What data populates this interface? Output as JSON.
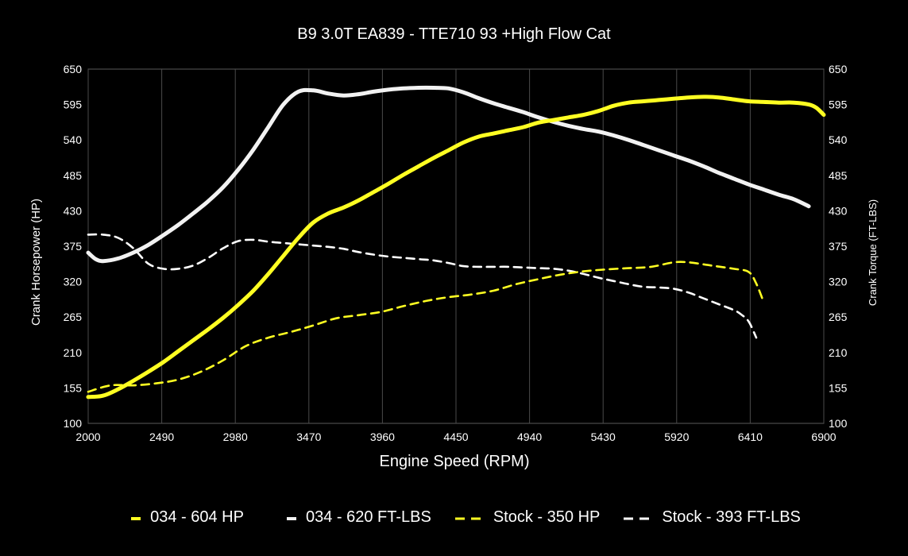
{
  "chart_data": {
    "type": "line",
    "title": "B9 3.0T EA839 - TTE710 93 +High Flow Cat",
    "xlabel": "Engine Speed (RPM)",
    "ylabel": "Crank Horsepower (HP)",
    "y2label": "Crank Torque (FT-LBS)",
    "xlim": [
      2000,
      6900
    ],
    "ylim": [
      100,
      650
    ],
    "y2lim": [
      100,
      650
    ],
    "x_ticks": [
      "2000",
      "2490",
      "2980",
      "3470",
      "3960",
      "4450",
      "4940",
      "5430",
      "5920",
      "6410",
      "6900"
    ],
    "y_ticks": [
      "100",
      "155",
      "210",
      "265",
      "320",
      "375",
      "430",
      "485",
      "540",
      "595",
      "650"
    ],
    "grid": "vertical",
    "legend_position": "bottom",
    "series": [
      {
        "name": "034 - 604 HP",
        "color": "#ffff22",
        "style": "solid",
        "axis": "left",
        "points": [
          [
            2000,
            141
          ],
          [
            2100,
            143
          ],
          [
            2200,
            153
          ],
          [
            2300,
            166
          ],
          [
            2400,
            180
          ],
          [
            2500,
            195
          ],
          [
            2600,
            212
          ],
          [
            2700,
            229
          ],
          [
            2800,
            246
          ],
          [
            2900,
            264
          ],
          [
            3000,
            284
          ],
          [
            3100,
            306
          ],
          [
            3200,
            332
          ],
          [
            3300,
            360
          ],
          [
            3400,
            388
          ],
          [
            3500,
            412
          ],
          [
            3600,
            426
          ],
          [
            3700,
            435
          ],
          [
            3800,
            446
          ],
          [
            3900,
            459
          ],
          [
            4000,
            472
          ],
          [
            4100,
            486
          ],
          [
            4200,
            499
          ],
          [
            4300,
            512
          ],
          [
            4400,
            524
          ],
          [
            4500,
            536
          ],
          [
            4600,
            545
          ],
          [
            4700,
            550
          ],
          [
            4800,
            555
          ],
          [
            4900,
            560
          ],
          [
            5000,
            567
          ],
          [
            5100,
            571
          ],
          [
            5200,
            575
          ],
          [
            5300,
            579
          ],
          [
            5400,
            585
          ],
          [
            5500,
            593
          ],
          [
            5600,
            598
          ],
          [
            5700,
            600
          ],
          [
            5800,
            602
          ],
          [
            5900,
            604
          ],
          [
            6000,
            606
          ],
          [
            6100,
            607
          ],
          [
            6200,
            606
          ],
          [
            6300,
            603
          ],
          [
            6400,
            600
          ],
          [
            6500,
            599
          ],
          [
            6600,
            598
          ],
          [
            6700,
            598
          ],
          [
            6800,
            595
          ],
          [
            6850,
            590
          ],
          [
            6900,
            579
          ]
        ]
      },
      {
        "name": "034 - 620 FT-LBS",
        "color": "#f2f2f2",
        "style": "solid",
        "axis": "right",
        "points": [
          [
            2000,
            365
          ],
          [
            2050,
            355
          ],
          [
            2100,
            352
          ],
          [
            2200,
            356
          ],
          [
            2300,
            365
          ],
          [
            2400,
            377
          ],
          [
            2500,
            392
          ],
          [
            2600,
            408
          ],
          [
            2700,
            426
          ],
          [
            2800,
            445
          ],
          [
            2900,
            467
          ],
          [
            3000,
            494
          ],
          [
            3100,
            525
          ],
          [
            3200,
            560
          ],
          [
            3300,
            595
          ],
          [
            3400,
            615
          ],
          [
            3500,
            617
          ],
          [
            3600,
            612
          ],
          [
            3700,
            609
          ],
          [
            3800,
            611
          ],
          [
            3900,
            615
          ],
          [
            4000,
            618
          ],
          [
            4100,
            620
          ],
          [
            4200,
            621
          ],
          [
            4300,
            621
          ],
          [
            4400,
            620
          ],
          [
            4500,
            614
          ],
          [
            4600,
            605
          ],
          [
            4700,
            597
          ],
          [
            4800,
            590
          ],
          [
            4900,
            583
          ],
          [
            5000,
            575
          ],
          [
            5100,
            568
          ],
          [
            5200,
            562
          ],
          [
            5300,
            557
          ],
          [
            5400,
            553
          ],
          [
            5500,
            547
          ],
          [
            5600,
            540
          ],
          [
            5700,
            532
          ],
          [
            5800,
            524
          ],
          [
            5900,
            516
          ],
          [
            6000,
            508
          ],
          [
            6100,
            499
          ],
          [
            6200,
            489
          ],
          [
            6300,
            480
          ],
          [
            6400,
            471
          ],
          [
            6500,
            463
          ],
          [
            6600,
            455
          ],
          [
            6700,
            448
          ],
          [
            6800,
            437
          ]
        ]
      },
      {
        "name": "Stock - 350 HP",
        "color": "#ffff22",
        "style": "dashed",
        "axis": "left",
        "points": [
          [
            2000,
            149
          ],
          [
            2150,
            159
          ],
          [
            2300,
            159
          ],
          [
            2450,
            162
          ],
          [
            2600,
            168
          ],
          [
            2750,
            180
          ],
          [
            2900,
            198
          ],
          [
            3050,
            220
          ],
          [
            3200,
            233
          ],
          [
            3350,
            242
          ],
          [
            3500,
            252
          ],
          [
            3650,
            263
          ],
          [
            3800,
            268
          ],
          [
            3950,
            273
          ],
          [
            4100,
            282
          ],
          [
            4250,
            290
          ],
          [
            4400,
            296
          ],
          [
            4550,
            300
          ],
          [
            4700,
            306
          ],
          [
            4850,
            316
          ],
          [
            5000,
            324
          ],
          [
            5150,
            331
          ],
          [
            5300,
            336
          ],
          [
            5450,
            339
          ],
          [
            5600,
            341
          ],
          [
            5750,
            343
          ],
          [
            5900,
            350
          ],
          [
            6000,
            350
          ],
          [
            6150,
            345
          ],
          [
            6300,
            340
          ],
          [
            6400,
            335
          ],
          [
            6450,
            317
          ],
          [
            6500,
            288
          ]
        ]
      },
      {
        "name": "Stock - 393 FT-LBS",
        "color": "#ffffff",
        "style": "dashed",
        "axis": "right",
        "points": [
          [
            2000,
            393
          ],
          [
            2100,
            393
          ],
          [
            2200,
            388
          ],
          [
            2300,
            372
          ],
          [
            2400,
            348
          ],
          [
            2500,
            340
          ],
          [
            2600,
            340
          ],
          [
            2700,
            345
          ],
          [
            2800,
            357
          ],
          [
            2900,
            372
          ],
          [
            3000,
            383
          ],
          [
            3100,
            385
          ],
          [
            3200,
            382
          ],
          [
            3300,
            380
          ],
          [
            3400,
            378
          ],
          [
            3500,
            376
          ],
          [
            3600,
            374
          ],
          [
            3700,
            371
          ],
          [
            3800,
            366
          ],
          [
            3900,
            362
          ],
          [
            4000,
            359
          ],
          [
            4100,
            357
          ],
          [
            4200,
            355
          ],
          [
            4300,
            353
          ],
          [
            4400,
            349
          ],
          [
            4500,
            344
          ],
          [
            4600,
            343
          ],
          [
            4700,
            343
          ],
          [
            4800,
            343
          ],
          [
            4900,
            342
          ],
          [
            5000,
            341
          ],
          [
            5100,
            340
          ],
          [
            5200,
            337
          ],
          [
            5300,
            332
          ],
          [
            5400,
            326
          ],
          [
            5500,
            321
          ],
          [
            5600,
            316
          ],
          [
            5700,
            312
          ],
          [
            5800,
            311
          ],
          [
            5900,
            309
          ],
          [
            6000,
            303
          ],
          [
            6100,
            294
          ],
          [
            6200,
            285
          ],
          [
            6300,
            276
          ],
          [
            6350,
            269
          ],
          [
            6400,
            258
          ],
          [
            6450,
            233
          ]
        ]
      }
    ]
  }
}
